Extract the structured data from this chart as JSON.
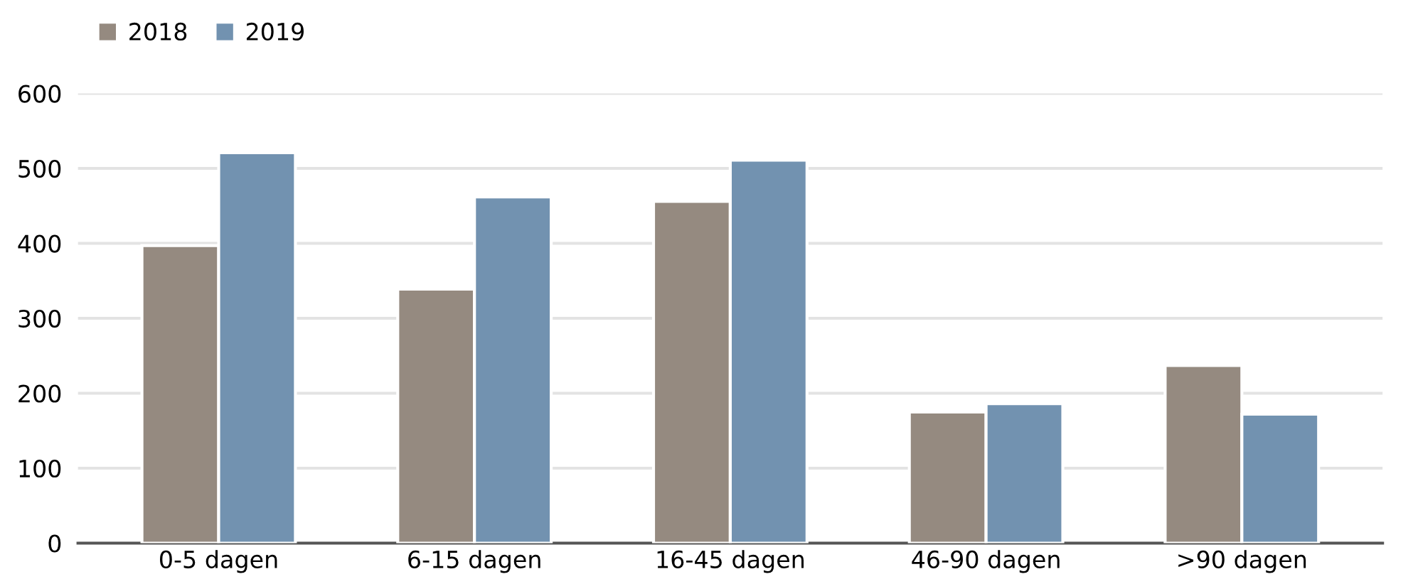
{
  "chart_data": {
    "type": "bar",
    "categories": [
      "0-5 dagen",
      "6-15 dagen",
      "16-45 dagen",
      "46-90 dagen",
      ">90 dagen"
    ],
    "series": [
      {
        "name": "2018",
        "color": "#958a80",
        "values": [
          397,
          339,
          456,
          175,
          237
        ]
      },
      {
        "name": "2019",
        "color": "#7292b0",
        "values": [
          521,
          462,
          511,
          186,
          172
        ]
      }
    ],
    "ylim": [
      0,
      600
    ],
    "yticks": [
      0,
      100,
      200,
      300,
      400,
      500,
      600
    ],
    "grid": "y",
    "legend": "top left"
  }
}
